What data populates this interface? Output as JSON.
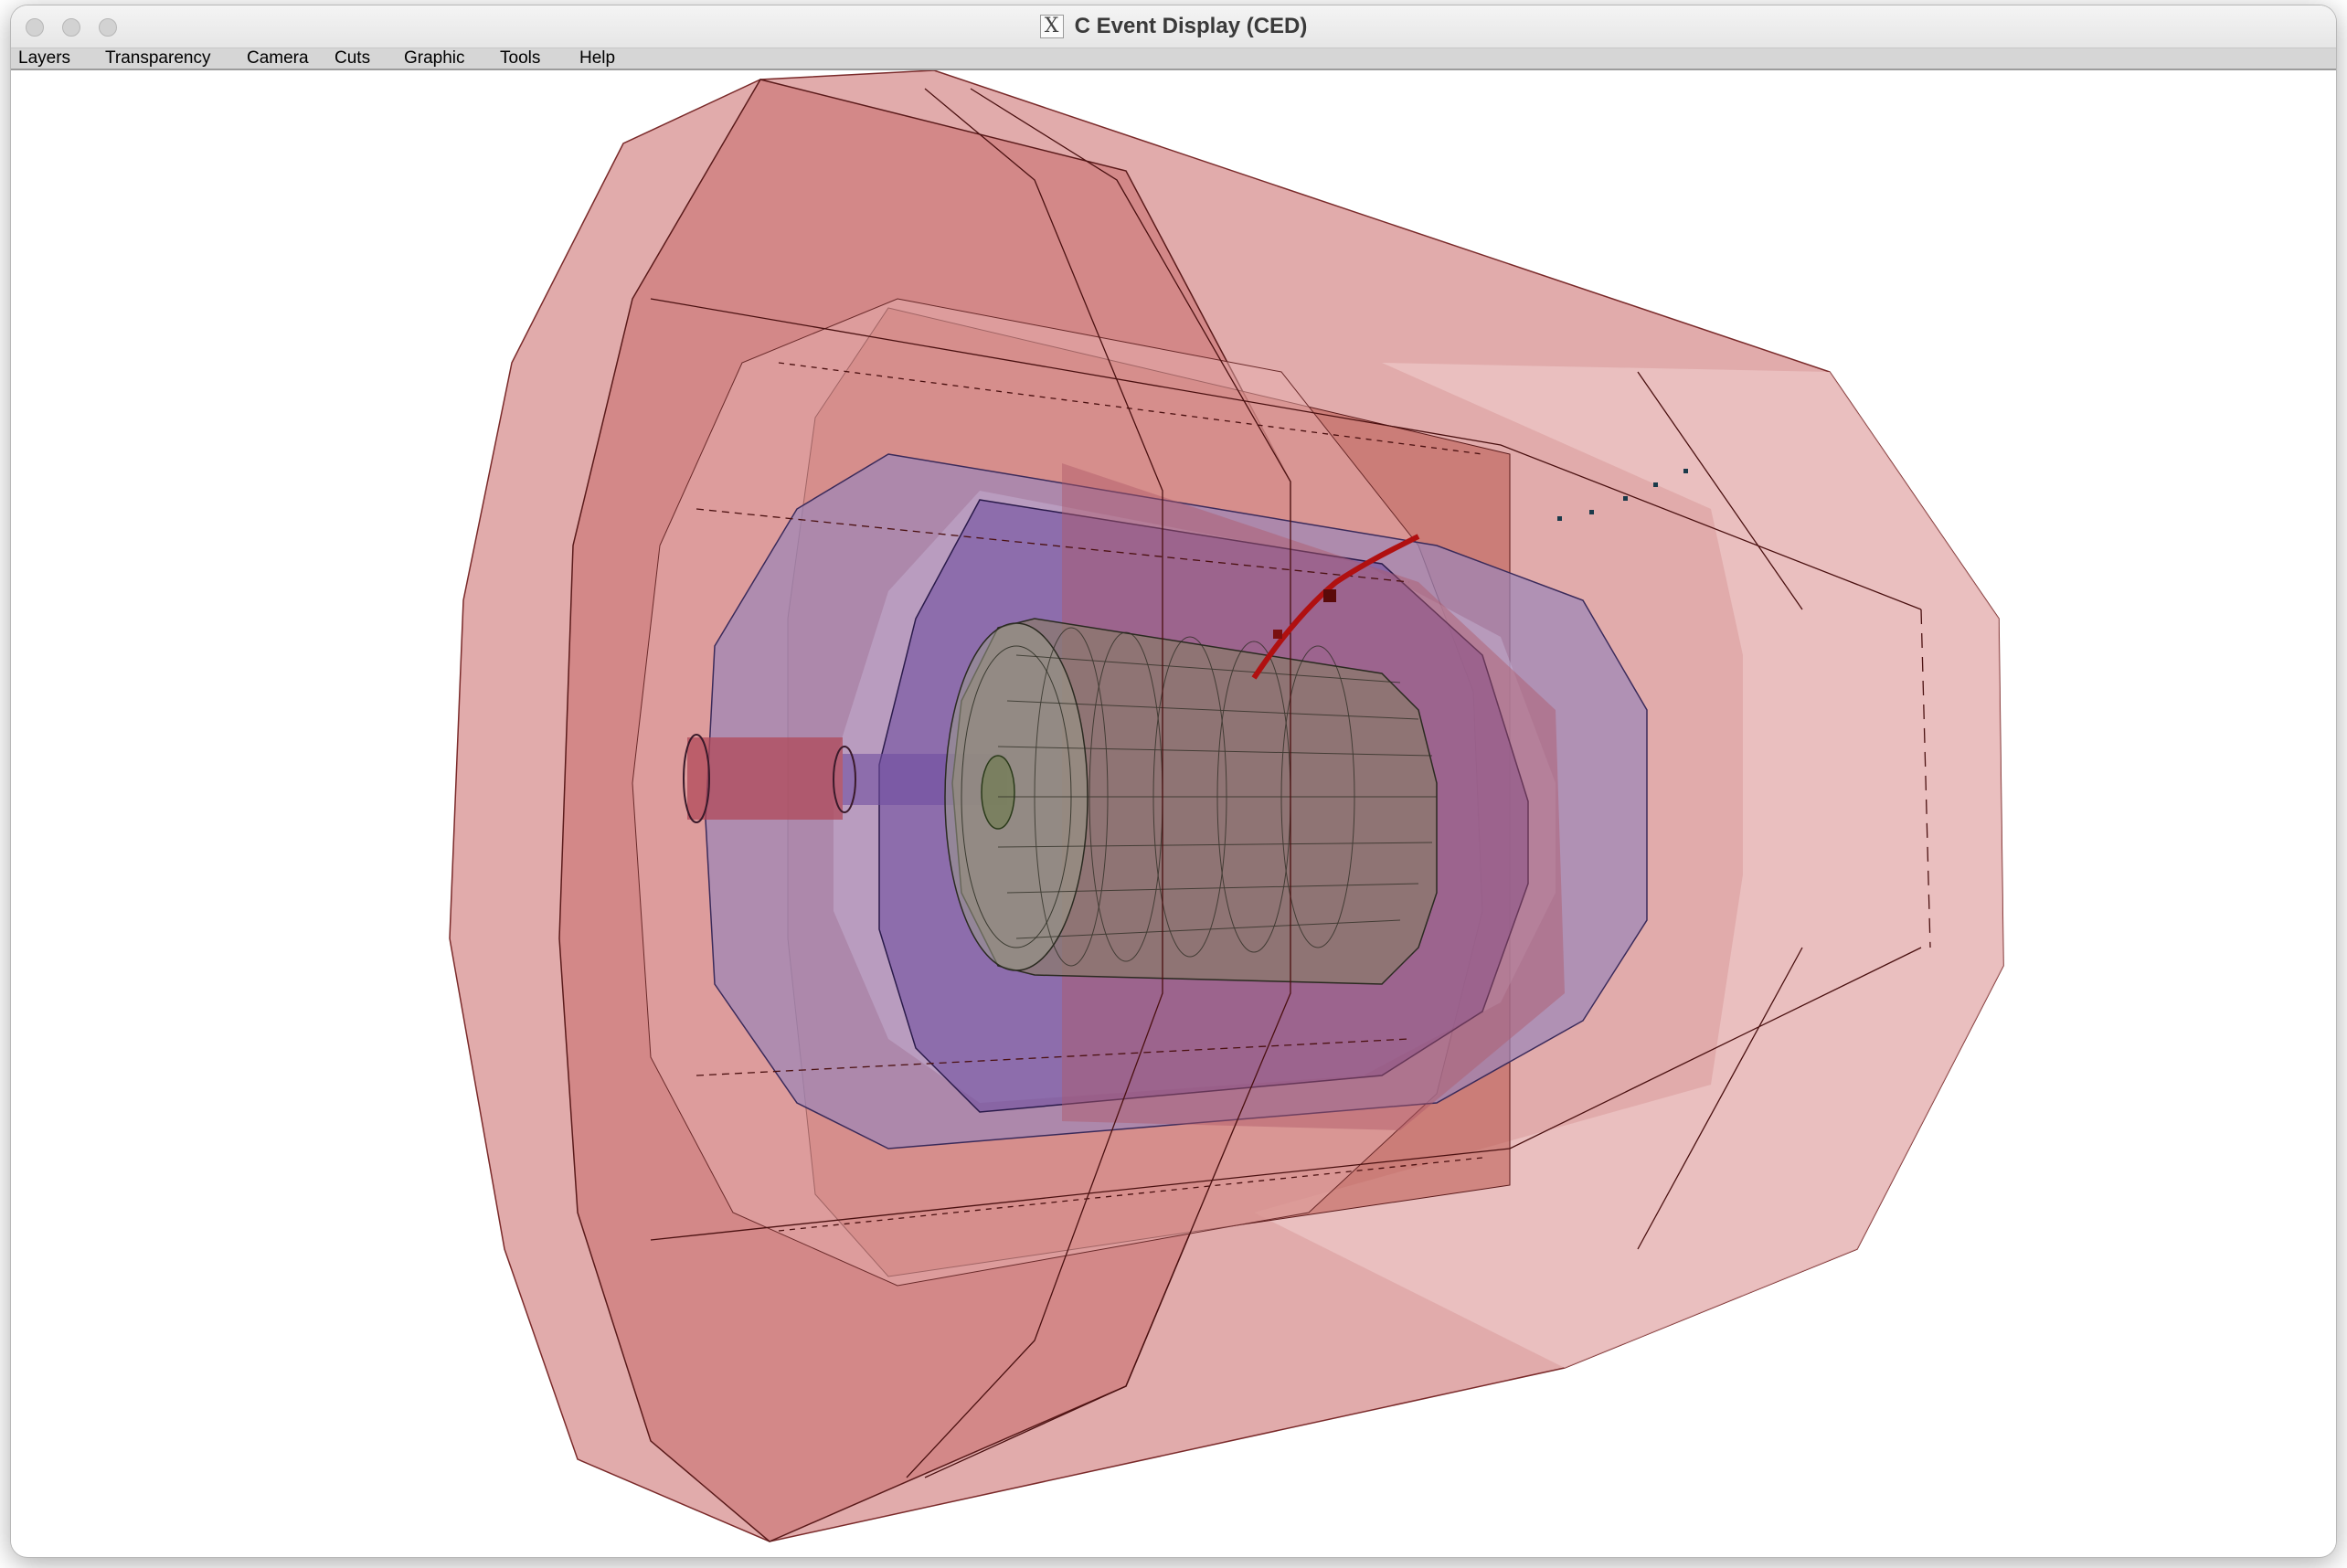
{
  "window": {
    "title": "C Event Display (CED)",
    "app_icon": "x11-icon"
  },
  "menu": {
    "items": [
      {
        "label": "Layers"
      },
      {
        "label": "Transparency"
      },
      {
        "label": "Camera"
      },
      {
        "label": "Cuts"
      },
      {
        "label": "Graphic"
      },
      {
        "label": "Tools"
      },
      {
        "label": "Help"
      }
    ]
  },
  "colors": {
    "yoke": "#c86b6b",
    "coil": "#b9574e",
    "hcal": "#9b86b8",
    "ecal": "#6f4fa0",
    "tracker": "#8a8a7a",
    "track": "#b01010",
    "hits": "#1a3a4a"
  }
}
